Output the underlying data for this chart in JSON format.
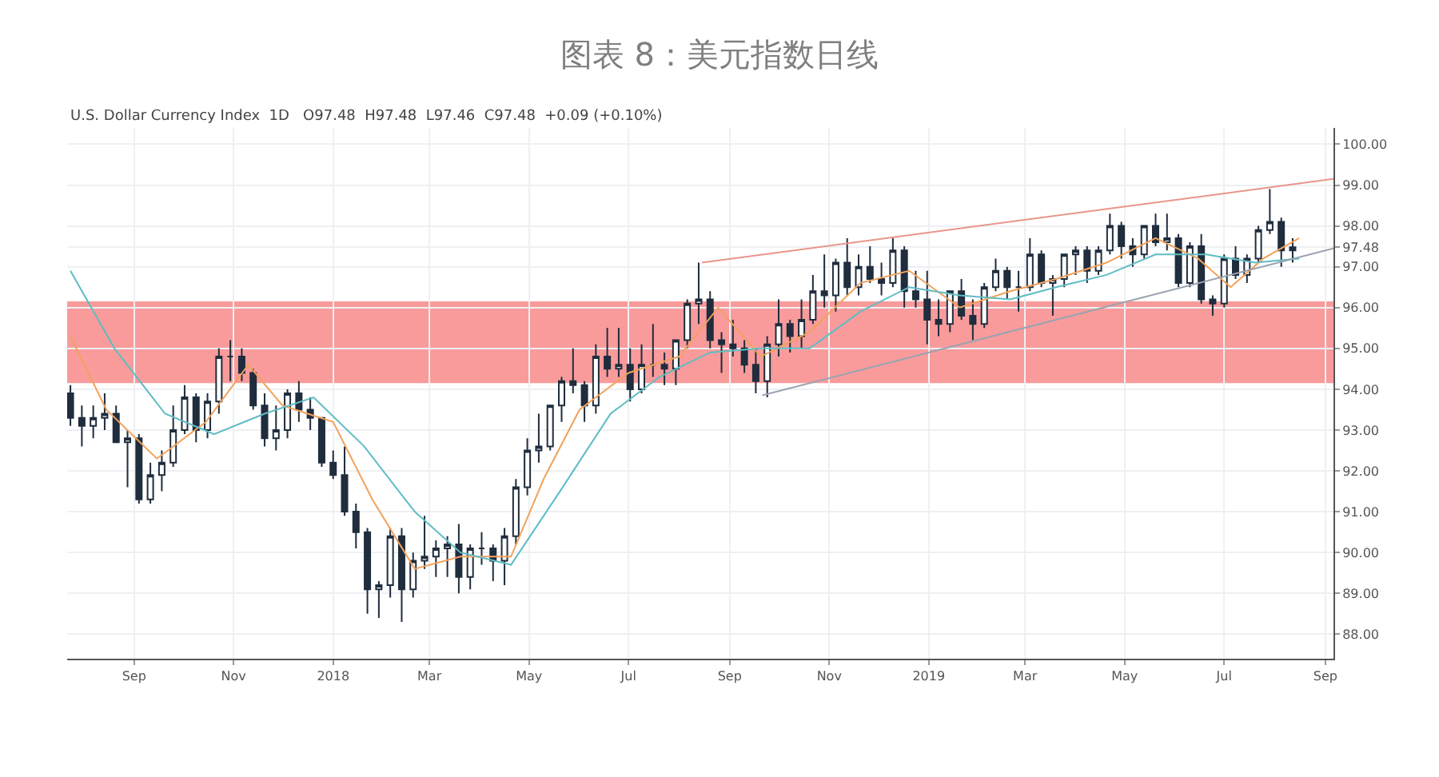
{
  "chart_data": {
    "type": "candlestick",
    "title": "图表 8：美元指数日线",
    "annotations": [
      "U.S. Dollar Currency Index  1D   O97.48  H97.48  L97.46  C97.48  +0.09 (+0.10%)"
    ],
    "color": "#1f2d3d",
    "x": [
      "2017-07-24",
      "2017-07-31",
      "2017-08-07",
      "2017-08-14",
      "2017-08-21",
      "2017-08-28",
      "2017-09-04",
      "2017-09-11",
      "2017-09-18",
      "2017-09-25",
      "2017-10-02",
      "2017-10-09",
      "2017-10-16",
      "2017-10-23",
      "2017-10-30",
      "2017-11-06",
      "2017-11-13",
      "2017-11-20",
      "2017-11-27",
      "2017-12-04",
      "2017-12-11",
      "2017-12-18",
      "2017-12-25",
      "2018-01-01",
      "2018-01-08",
      "2018-01-15",
      "2018-01-22",
      "2018-01-29",
      "2018-02-05",
      "2018-02-12",
      "2018-02-19",
      "2018-02-26",
      "2018-03-05",
      "2018-03-12",
      "2018-03-19",
      "2018-03-26",
      "2018-04-02",
      "2018-04-09",
      "2018-04-16",
      "2018-04-23",
      "2018-04-30",
      "2018-05-07",
      "2018-05-14",
      "2018-05-21",
      "2018-05-28",
      "2018-06-04",
      "2018-06-11",
      "2018-06-18",
      "2018-06-25",
      "2018-07-02",
      "2018-07-09",
      "2018-07-16",
      "2018-07-23",
      "2018-07-30",
      "2018-08-06",
      "2018-08-13",
      "2018-08-20",
      "2018-08-27",
      "2018-09-03",
      "2018-09-10",
      "2018-09-17",
      "2018-09-24",
      "2018-10-01",
      "2018-10-08",
      "2018-10-15",
      "2018-10-22",
      "2018-10-29",
      "2018-11-05",
      "2018-11-12",
      "2018-11-19",
      "2018-11-26",
      "2018-12-03",
      "2018-12-10",
      "2018-12-17",
      "2018-12-24",
      "2018-12-31",
      "2019-01-07",
      "2019-01-14",
      "2019-01-21",
      "2019-01-28",
      "2019-02-04",
      "2019-02-11",
      "2019-02-18",
      "2019-02-25",
      "2019-03-04",
      "2019-03-11",
      "2019-03-18",
      "2019-03-25",
      "2019-04-01",
      "2019-04-08",
      "2019-04-15",
      "2019-04-22",
      "2019-04-29",
      "2019-05-06",
      "2019-05-13",
      "2019-05-20",
      "2019-05-27",
      "2019-06-03",
      "2019-06-10",
      "2019-06-17",
      "2019-06-24",
      "2019-07-01",
      "2019-07-08",
      "2019-07-15",
      "2019-07-22",
      "2019-07-29",
      "2019-08-05",
      "2019-08-12"
    ],
    "ohlc": [
      [
        93.9,
        94.1,
        93.1,
        93.3
      ],
      [
        93.3,
        93.6,
        92.6,
        93.1
      ],
      [
        93.1,
        93.6,
        92.8,
        93.3
      ],
      [
        93.3,
        93.9,
        93.0,
        93.4
      ],
      [
        93.4,
        93.6,
        92.7,
        92.7
      ],
      [
        92.7,
        93.0,
        91.6,
        92.8
      ],
      [
        92.8,
        92.9,
        91.2,
        91.3
      ],
      [
        91.3,
        92.2,
        91.2,
        91.9
      ],
      [
        91.9,
        92.5,
        91.5,
        92.2
      ],
      [
        92.2,
        93.6,
        92.1,
        93.0
      ],
      [
        93.0,
        94.1,
        92.9,
        93.8
      ],
      [
        93.8,
        93.9,
        92.7,
        93.0
      ],
      [
        93.0,
        93.9,
        92.8,
        93.7
      ],
      [
        93.7,
        95.0,
        93.4,
        94.8
      ],
      [
        94.8,
        95.2,
        94.2,
        94.8
      ],
      [
        94.8,
        95.0,
        94.2,
        94.4
      ],
      [
        94.4,
        94.5,
        93.5,
        93.6
      ],
      [
        93.6,
        93.9,
        92.6,
        92.8
      ],
      [
        92.8,
        93.6,
        92.5,
        93.0
      ],
      [
        93.0,
        94.0,
        92.8,
        93.9
      ],
      [
        93.9,
        94.2,
        93.2,
        93.5
      ],
      [
        93.5,
        93.8,
        93.0,
        93.3
      ],
      [
        93.3,
        93.3,
        92.1,
        92.2
      ],
      [
        92.2,
        92.5,
        91.8,
        91.9
      ],
      [
        91.9,
        92.6,
        90.9,
        91.0
      ],
      [
        91.0,
        91.2,
        90.1,
        90.5
      ],
      [
        90.5,
        90.6,
        88.5,
        89.1
      ],
      [
        89.1,
        89.3,
        88.4,
        89.2
      ],
      [
        89.2,
        90.6,
        88.9,
        90.4
      ],
      [
        90.4,
        90.6,
        88.3,
        89.1
      ],
      [
        89.1,
        90.0,
        88.9,
        89.8
      ],
      [
        89.8,
        90.9,
        89.6,
        89.9
      ],
      [
        89.9,
        90.3,
        89.4,
        90.1
      ],
      [
        90.1,
        90.4,
        89.4,
        90.2
      ],
      [
        90.2,
        90.7,
        89.0,
        89.4
      ],
      [
        89.4,
        90.2,
        89.1,
        90.1
      ],
      [
        90.1,
        90.5,
        89.7,
        90.1
      ],
      [
        90.1,
        90.2,
        89.3,
        89.8
      ],
      [
        89.8,
        90.6,
        89.2,
        90.4
      ],
      [
        90.4,
        91.8,
        90.2,
        91.6
      ],
      [
        91.6,
        92.8,
        91.4,
        92.5
      ],
      [
        92.5,
        93.4,
        92.2,
        92.6
      ],
      [
        92.6,
        93.6,
        92.5,
        93.6
      ],
      [
        93.6,
        94.3,
        93.2,
        94.2
      ],
      [
        94.2,
        95.0,
        93.9,
        94.1
      ],
      [
        94.1,
        94.2,
        93.2,
        93.6
      ],
      [
        93.6,
        95.1,
        93.4,
        94.8
      ],
      [
        94.8,
        95.5,
        94.3,
        94.5
      ],
      [
        94.5,
        95.5,
        94.3,
        94.6
      ],
      [
        94.6,
        95.0,
        93.7,
        94.0
      ],
      [
        94.0,
        95.1,
        93.9,
        94.6
      ],
      [
        94.6,
        95.6,
        94.3,
        94.6
      ],
      [
        94.6,
        94.9,
        94.1,
        94.5
      ],
      [
        94.5,
        95.2,
        94.1,
        95.2
      ],
      [
        95.2,
        96.2,
        95.0,
        96.1
      ],
      [
        96.1,
        97.1,
        95.6,
        96.2
      ],
      [
        96.2,
        96.4,
        95.0,
        95.2
      ],
      [
        95.2,
        95.4,
        94.4,
        95.1
      ],
      [
        95.1,
        95.7,
        94.8,
        95.0
      ],
      [
        95.0,
        95.2,
        94.4,
        94.6
      ],
      [
        94.6,
        95.0,
        93.9,
        94.2
      ],
      [
        94.2,
        95.3,
        93.8,
        95.1
      ],
      [
        95.1,
        96.2,
        94.8,
        95.6
      ],
      [
        95.6,
        95.7,
        94.9,
        95.3
      ],
      [
        95.3,
        96.2,
        95.0,
        95.7
      ],
      [
        95.7,
        96.8,
        95.6,
        96.4
      ],
      [
        96.4,
        97.3,
        96.0,
        96.3
      ],
      [
        96.3,
        97.2,
        95.9,
        97.1
      ],
      [
        97.1,
        97.7,
        96.3,
        96.5
      ],
      [
        96.5,
        97.3,
        96.3,
        97.0
      ],
      [
        97.0,
        97.5,
        96.6,
        96.7
      ],
      [
        96.7,
        97.1,
        96.3,
        96.6
      ],
      [
        96.6,
        97.7,
        96.5,
        97.4
      ],
      [
        97.4,
        97.5,
        96.0,
        96.4
      ],
      [
        96.4,
        96.9,
        96.0,
        96.2
      ],
      [
        96.2,
        96.9,
        95.1,
        95.7
      ],
      [
        95.7,
        96.2,
        95.3,
        95.6
      ],
      [
        95.6,
        96.4,
        95.4,
        96.4
      ],
      [
        96.4,
        96.7,
        95.7,
        95.8
      ],
      [
        95.8,
        96.2,
        95.2,
        95.6
      ],
      [
        95.6,
        96.6,
        95.5,
        96.5
      ],
      [
        96.5,
        97.2,
        96.4,
        96.9
      ],
      [
        96.9,
        97.0,
        96.2,
        96.5
      ],
      [
        96.5,
        96.9,
        95.9,
        96.5
      ],
      [
        96.5,
        97.7,
        96.4,
        97.3
      ],
      [
        97.3,
        97.4,
        96.5,
        96.6
      ],
      [
        96.6,
        96.8,
        95.8,
        96.7
      ],
      [
        96.7,
        97.3,
        96.5,
        97.3
      ],
      [
        97.3,
        97.5,
        96.8,
        97.4
      ],
      [
        97.4,
        97.5,
        96.6,
        96.9
      ],
      [
        96.9,
        97.5,
        96.8,
        97.4
      ],
      [
        97.4,
        98.3,
        97.3,
        98.0
      ],
      [
        98.0,
        98.1,
        97.2,
        97.5
      ],
      [
        97.5,
        97.7,
        97.0,
        97.3
      ],
      [
        97.3,
        98.0,
        97.2,
        98.0
      ],
      [
        98.0,
        98.3,
        97.5,
        97.6
      ],
      [
        97.6,
        98.3,
        97.4,
        97.7
      ],
      [
        97.7,
        97.8,
        96.5,
        96.6
      ],
      [
        96.6,
        97.6,
        96.5,
        97.5
      ],
      [
        97.5,
        97.8,
        96.1,
        96.2
      ],
      [
        96.2,
        96.3,
        95.8,
        96.1
      ],
      [
        96.1,
        97.3,
        96.0,
        97.2
      ],
      [
        97.2,
        97.5,
        96.7,
        96.8
      ],
      [
        96.8,
        97.3,
        96.6,
        97.2
      ],
      [
        97.2,
        98.0,
        97.1,
        97.9
      ],
      [
        97.9,
        98.9,
        97.8,
        98.1
      ],
      [
        98.1,
        98.2,
        97.0,
        97.4
      ],
      [
        97.4,
        97.7,
        97.1,
        97.48
      ]
    ],
    "series": [
      {
        "type": "line",
        "color": "#f2a25c",
        "x": [
          "2017-07-24",
          "2017-08-15",
          "2017-09-15",
          "2017-10-15",
          "2017-11-10",
          "2017-12-01",
          "2018-01-01",
          "2018-01-25",
          "2018-02-20",
          "2018-03-20",
          "2018-04-20",
          "2018-05-10",
          "2018-06-01",
          "2018-07-01",
          "2018-08-01",
          "2018-08-25",
          "2018-09-20",
          "2018-10-20",
          "2018-11-20",
          "2018-12-20",
          "2019-01-20",
          "2019-02-20",
          "2019-03-20",
          "2019-04-20",
          "2019-05-20",
          "2019-06-15",
          "2019-07-05",
          "2019-07-25",
          "2019-08-16"
        ],
        "values": [
          95.3,
          93.5,
          92.3,
          93.2,
          94.6,
          93.6,
          93.2,
          91.3,
          89.6,
          89.9,
          89.9,
          91.8,
          93.5,
          94.4,
          94.8,
          96.0,
          94.8,
          95.4,
          96.6,
          96.9,
          96.0,
          96.4,
          96.7,
          97.1,
          97.7,
          97.2,
          96.5,
          97.2,
          97.7
        ]
      },
      {
        "type": "line",
        "color": "#5fbcc4",
        "x": [
          "2017-07-24",
          "2017-08-20",
          "2017-09-20",
          "2017-10-20",
          "2017-11-20",
          "2017-12-20",
          "2018-01-20",
          "2018-02-20",
          "2018-03-20",
          "2018-04-20",
          "2018-05-20",
          "2018-06-20",
          "2018-07-20",
          "2018-08-20",
          "2018-09-20",
          "2018-10-20",
          "2018-11-20",
          "2018-12-20",
          "2019-01-20",
          "2019-02-20",
          "2019-03-20",
          "2019-04-20",
          "2019-05-20",
          "2019-06-20",
          "2019-07-20",
          "2019-08-16"
        ],
        "values": [
          96.9,
          95.0,
          93.4,
          92.9,
          93.4,
          93.8,
          92.6,
          91.0,
          90.0,
          89.7,
          91.5,
          93.4,
          94.3,
          94.9,
          95.0,
          95.0,
          95.9,
          96.5,
          96.3,
          96.2,
          96.5,
          96.8,
          97.3,
          97.3,
          97.1,
          97.2
        ]
      },
      {
        "type": "line",
        "color": "#e8968a",
        "x": [
          "2018-08-15",
          "2019-09-06"
        ],
        "values": [
          97.1,
          99.15
        ]
      },
      {
        "type": "line",
        "color": "#9aa3b0",
        "x": [
          "2018-09-21",
          "2019-09-06"
        ],
        "values": [
          93.85,
          97.45
        ]
      }
    ],
    "bands": [
      {
        "axis": "y",
        "from": 94.15,
        "to": 96.15,
        "color": "#f88a8a"
      }
    ],
    "xlim": [
      "2017-07-22",
      "2019-09-06"
    ],
    "xticks": [
      {
        "value": "2017-09-01",
        "label": "Sep"
      },
      {
        "value": "2017-11-01",
        "label": "Nov"
      },
      {
        "value": "2018-01-01",
        "label": "2018"
      },
      {
        "value": "2018-03-01",
        "label": "Mar"
      },
      {
        "value": "2018-05-01",
        "label": "May"
      },
      {
        "value": "2018-07-01",
        "label": "Jul"
      },
      {
        "value": "2018-09-01",
        "label": "Sep"
      },
      {
        "value": "2018-11-01",
        "label": "Nov"
      },
      {
        "value": "2019-01-01",
        "label": "2019"
      },
      {
        "value": "2019-03-01",
        "label": "Mar"
      },
      {
        "value": "2019-05-01",
        "label": "May"
      },
      {
        "value": "2019-07-01",
        "label": "Jul"
      },
      {
        "value": "2019-09-01",
        "label": "Sep"
      }
    ],
    "ylim": [
      87.4,
      100.4
    ],
    "yticks": [
      {
        "value": 88,
        "label": "88.00"
      },
      {
        "value": 89,
        "label": "89.00"
      },
      {
        "value": 90,
        "label": "90.00"
      },
      {
        "value": 91,
        "label": "91.00"
      },
      {
        "value": 92,
        "label": "92.00"
      },
      {
        "value": 93,
        "label": "93.00"
      },
      {
        "value": 94,
        "label": "94.00"
      },
      {
        "value": 95,
        "label": "95.00"
      },
      {
        "value": 96,
        "label": "96.00"
      },
      {
        "value": 97,
        "label": "97.00"
      },
      {
        "value": 97.48,
        "label": "97.48"
      },
      {
        "value": 98,
        "label": "98.00"
      },
      {
        "value": 99,
        "label": "99.00"
      },
      {
        "value": 100,
        "label": "100.00"
      }
    ],
    "grid": true
  }
}
